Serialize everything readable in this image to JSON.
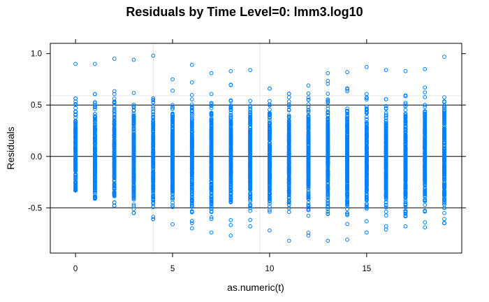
{
  "chart_data": {
    "type": "scatter",
    "title": "Residuals by Time Level=0: lmm3.log10",
    "xlabel": "as.numeric(t)",
    "ylabel": "Residuals",
    "xlim": [
      -1.3,
      19.9
    ],
    "ylim": [
      -0.94,
      1.1
    ],
    "x_ticks": [
      0,
      5,
      10,
      15
    ],
    "x_tick_labels": [
      "0",
      "5",
      "10",
      "15"
    ],
    "y_ticks": [
      -0.5,
      0.0,
      0.5,
      1.0
    ],
    "y_tick_labels": [
      "-0.5",
      "0.0",
      "0.5",
      "1.0"
    ],
    "reference_lines": [
      -0.5,
      0.0,
      0.5
    ],
    "grid": true,
    "grid_x": [
      4,
      9.5
    ],
    "grid_y": [
      0.59
    ],
    "point_color": "#0080ff",
    "reference_line_color": "#000000",
    "grid_color": "#e6e6e6",
    "groups": [
      {
        "x": 0,
        "min": -0.33,
        "max": 0.9,
        "n": 200
      },
      {
        "x": 1,
        "min": -0.41,
        "max": 0.9,
        "n": 200
      },
      {
        "x": 2,
        "min": -0.48,
        "max": 0.95,
        "n": 230
      },
      {
        "x": 3,
        "min": -0.55,
        "max": 0.94,
        "n": 240
      },
      {
        "x": 4,
        "min": -0.61,
        "max": 0.98,
        "n": 240
      },
      {
        "x": 5,
        "min": -0.66,
        "max": 0.75,
        "n": 250
      },
      {
        "x": 6,
        "min": -0.7,
        "max": 0.89,
        "n": 250
      },
      {
        "x": 7,
        "min": -0.74,
        "max": 0.81,
        "n": 250
      },
      {
        "x": 8,
        "min": -0.77,
        "max": 0.83,
        "n": 250
      },
      {
        "x": 9,
        "min": -0.68,
        "max": 0.84,
        "n": 250
      },
      {
        "x": 10,
        "min": -0.72,
        "max": 0.66,
        "n": 260
      },
      {
        "x": 11,
        "min": -0.82,
        "max": 0.61,
        "n": 260
      },
      {
        "x": 12,
        "min": -0.77,
        "max": 0.69,
        "n": 260
      },
      {
        "x": 13,
        "min": -0.82,
        "max": 0.81,
        "n": 260
      },
      {
        "x": 14,
        "min": -0.81,
        "max": 0.82,
        "n": 260
      },
      {
        "x": 15,
        "min": -0.74,
        "max": 0.87,
        "n": 260
      },
      {
        "x": 16,
        "min": -0.71,
        "max": 0.84,
        "n": 250
      },
      {
        "x": 17,
        "min": -0.68,
        "max": 0.83,
        "n": 250
      },
      {
        "x": 18,
        "min": -0.69,
        "max": 0.85,
        "n": 250
      },
      {
        "x": 19,
        "min": -0.65,
        "max": 0.97,
        "n": 240
      }
    ]
  }
}
